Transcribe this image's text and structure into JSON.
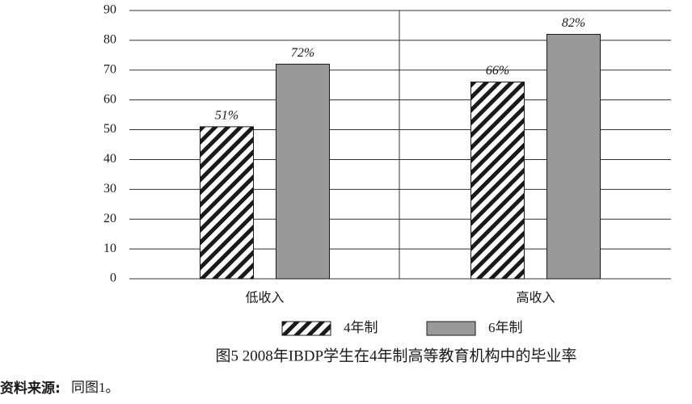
{
  "chart_data": {
    "type": "bar",
    "categories": [
      "低收入",
      "高收入"
    ],
    "series": [
      {
        "name": "4年制",
        "color": "#1a1a1a",
        "pattern": "hatch",
        "values": [
          51,
          66
        ],
        "value_labels": [
          "51%",
          "66%"
        ]
      },
      {
        "name": "6年制",
        "color": "#999999",
        "values": [
          72,
          82
        ],
        "value_labels": [
          "72%",
          "82%"
        ]
      }
    ],
    "ylim": [
      0,
      90
    ],
    "yticks": [
      0,
      10,
      20,
      30,
      40,
      50,
      60,
      70,
      80,
      90
    ],
    "grid": true,
    "caption": "图5 2008年IBDP学生在4年制高等教育机构中的毕业率",
    "source": {
      "label": "资料来源:",
      "text": "同图1。"
    }
  }
}
